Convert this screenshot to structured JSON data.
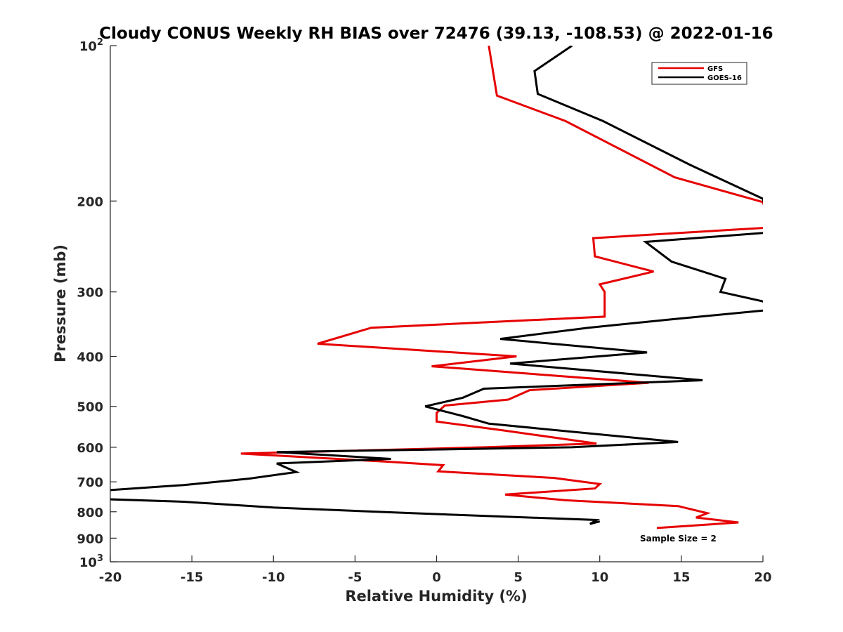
{
  "chart_data": {
    "type": "line",
    "title": "Cloudy CONUS Weekly RH BIAS over 72476 (39.13, -108.53) @ 2022-01-16",
    "xlabel": "Relative Humidity (%)",
    "ylabel": "Pressure (mb)",
    "xlim": [
      -20,
      20
    ],
    "ylim": [
      100,
      1000
    ],
    "y_scale": "log",
    "y_reversed": true,
    "grid": false,
    "legend_position": "top-right",
    "x_ticks": [
      "-20",
      "-15",
      "-10",
      "-5",
      "0",
      "5",
      "10",
      "15",
      "20"
    ],
    "y_ticks": [
      {
        "value": 100,
        "base": "10",
        "exp": "2"
      },
      {
        "value": 200,
        "label": "200"
      },
      {
        "value": 300,
        "label": "300"
      },
      {
        "value": 400,
        "label": "400"
      },
      {
        "value": 500,
        "label": "500"
      },
      {
        "value": 600,
        "label": "600"
      },
      {
        "value": 700,
        "label": "700"
      },
      {
        "value": 800,
        "label": "800"
      },
      {
        "value": 900,
        "label": "900"
      },
      {
        "value": 1000,
        "base": "10",
        "exp": "3"
      }
    ],
    "series": [
      {
        "name": "GFS",
        "color": "#e60000",
        "points": [
          [
            3.2,
            100
          ],
          [
            3.7,
            125
          ],
          [
            7.9,
            140
          ],
          [
            14.6,
            180
          ],
          [
            20.0,
            201
          ],
          [
            20.5,
            225
          ],
          [
            9.6,
            236
          ],
          [
            9.7,
            256
          ],
          [
            13.3,
            274
          ],
          [
            10.0,
            290
          ],
          [
            10.3,
            300
          ],
          [
            10.3,
            335
          ],
          [
            -4.0,
            352
          ],
          [
            -7.3,
            378
          ],
          [
            4.9,
            400
          ],
          [
            -0.3,
            418
          ],
          [
            13.0,
            450
          ],
          [
            5.7,
            465
          ],
          [
            4.4,
            485
          ],
          [
            0.5,
            498
          ],
          [
            0.0,
            515
          ],
          [
            0.0,
            535
          ],
          [
            4.0,
            556
          ],
          [
            9.8,
            590
          ],
          [
            3.0,
            600
          ],
          [
            -12.0,
            617
          ],
          [
            -3.0,
            640
          ],
          [
            0.4,
            650
          ],
          [
            0.1,
            668
          ],
          [
            7.2,
            688
          ],
          [
            10.0,
            707
          ],
          [
            9.7,
            721
          ],
          [
            4.2,
            741
          ],
          [
            7.9,
            760
          ],
          [
            14.8,
            780
          ],
          [
            16.6,
            805
          ],
          [
            15.9,
            821
          ],
          [
            18.5,
            839
          ],
          [
            13.5,
            860
          ]
        ]
      },
      {
        "name": "GOES-16",
        "color": "#000000",
        "points": [
          [
            8.3,
            100
          ],
          [
            6.0,
            112
          ],
          [
            6.2,
            124
          ],
          [
            10.2,
            140
          ],
          [
            15.5,
            170
          ],
          [
            20.0,
            198
          ],
          [
            20.5,
            230
          ],
          [
            12.8,
            240
          ],
          [
            14.4,
            262
          ],
          [
            17.7,
            283
          ],
          [
            17.4,
            300
          ],
          [
            20.0,
            313
          ],
          [
            20.5,
            325
          ],
          [
            14.4,
            339
          ],
          [
            9.3,
            352
          ],
          [
            3.9,
            370
          ],
          [
            12.9,
            393
          ],
          [
            4.5,
            413
          ],
          [
            16.3,
            445
          ],
          [
            2.9,
            462
          ],
          [
            1.6,
            481
          ],
          [
            -0.7,
            500
          ],
          [
            1.6,
            522
          ],
          [
            3.2,
            540
          ],
          [
            14.8,
            586
          ],
          [
            8.3,
            600
          ],
          [
            -9.8,
            613
          ],
          [
            -2.8,
            632
          ],
          [
            -9.8,
            645
          ],
          [
            -8.6,
            670
          ],
          [
            -11.5,
            690
          ],
          [
            -15.5,
            710
          ],
          [
            -21.0,
            730
          ],
          [
            -21.0,
            755
          ],
          [
            -15.5,
            765
          ],
          [
            -10.0,
            785
          ],
          [
            -1.5,
            805
          ],
          [
            9.8,
            830
          ],
          [
            9.4,
            845
          ],
          [
            10.0,
            835
          ]
        ]
      }
    ],
    "annotations": [
      {
        "text": "Sample Size = 2"
      }
    ]
  }
}
